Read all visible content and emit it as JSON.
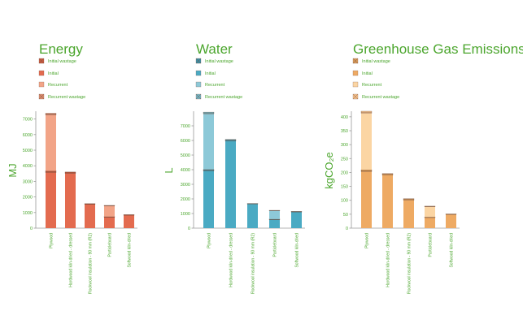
{
  "chart_data": [
    {
      "type": "bar",
      "title": "Energy",
      "ylabel": "MJ",
      "ylim": [
        0,
        7500
      ],
      "yticks": [
        0,
        1000,
        2000,
        3000,
        4000,
        5000,
        6000,
        7000
      ],
      "categories": [
        "Plywood",
        "Hardwood kiln-dried - dressed",
        "Rockwool insulation - 90 mm (R2)",
        "Particleboard",
        "Softwood kiln-dried"
      ],
      "legend": [
        "Initial wastage",
        "Initial",
        "Recurrent",
        "Recurrent wastage"
      ],
      "colors": {
        "Initial wastage": "#c85a3f",
        "Initial": "#e36b4f",
        "Recurrent": "#f2a487",
        "Recurrent wastage": "#d98a6c"
      },
      "series": [
        {
          "name": "Initial",
          "values": [
            3560,
            3500,
            1540,
            720,
            850
          ]
        },
        {
          "name": "Initial wastage",
          "values": [
            120,
            100,
            30,
            20,
            15
          ]
        },
        {
          "name": "Recurrent",
          "values": [
            3570,
            0,
            0,
            700,
            0
          ]
        },
        {
          "name": "Recurrent wastage",
          "values": [
            120,
            0,
            0,
            20,
            0
          ]
        }
      ]
    },
    {
      "type": "bar",
      "title": "Water",
      "ylabel": "L",
      "ylim": [
        0,
        8000
      ],
      "yticks": [
        0,
        1000,
        2000,
        3000,
        4000,
        5000,
        6000,
        7000
      ],
      "categories": [
        "Plywood",
        "Hardwood kiln-dried - dressed",
        "Rockwool insulation - 90 mm (R2)",
        "Particleboard",
        "Softwood kiln-dried"
      ],
      "legend": [
        "Initial wastage",
        "Initial",
        "Recurrent",
        "Recurrent wastage"
      ],
      "colors": {
        "Initial wastage": "#3a8fa6",
        "Initial": "#4aaac3",
        "Recurrent": "#8dc9d8",
        "Recurrent wastage": "#6fb3c3"
      },
      "series": [
        {
          "name": "Initial",
          "values": [
            3900,
            5950,
            1650,
            600,
            1130
          ]
        },
        {
          "name": "Initial wastage",
          "values": [
            120,
            120,
            40,
            20,
            15
          ]
        },
        {
          "name": "Recurrent",
          "values": [
            3800,
            0,
            0,
            580,
            0
          ]
        },
        {
          "name": "Recurrent wastage",
          "values": [
            120,
            0,
            0,
            20,
            0
          ]
        }
      ]
    },
    {
      "type": "bar",
      "title": "Greenhouse Gas Emissions",
      "ylabel": "kgCO₂e",
      "ylim": [
        0,
        420
      ],
      "yticks": [
        0,
        50,
        100,
        150,
        200,
        250,
        300,
        350,
        400
      ],
      "categories": [
        "Plywood",
        "Hardwood kiln-dried - dressed",
        "Rockwool insulation - 90 mm (R2)",
        "Particleboard",
        "Softwood kiln-dried"
      ],
      "legend": [
        "Initial wastage",
        "Initial",
        "Recurrent",
        "Recurrent wastage"
      ],
      "colors": {
        "Initial wastage": "#d89a58",
        "Initial": "#eeaa63",
        "Recurrent": "#fbd5a3",
        "Recurrent wastage": "#f4c08a"
      },
      "series": [
        {
          "name": "Initial",
          "values": [
            203,
            190,
            100,
            39,
            50
          ]
        },
        {
          "name": "Initial wastage",
          "values": [
            7,
            6,
            6,
            1,
            1
          ]
        },
        {
          "name": "Recurrent",
          "values": [
            203,
            0,
            0,
            38,
            0
          ]
        },
        {
          "name": "Recurrent wastage",
          "values": [
            7,
            0,
            0,
            1,
            0
          ]
        }
      ]
    }
  ]
}
